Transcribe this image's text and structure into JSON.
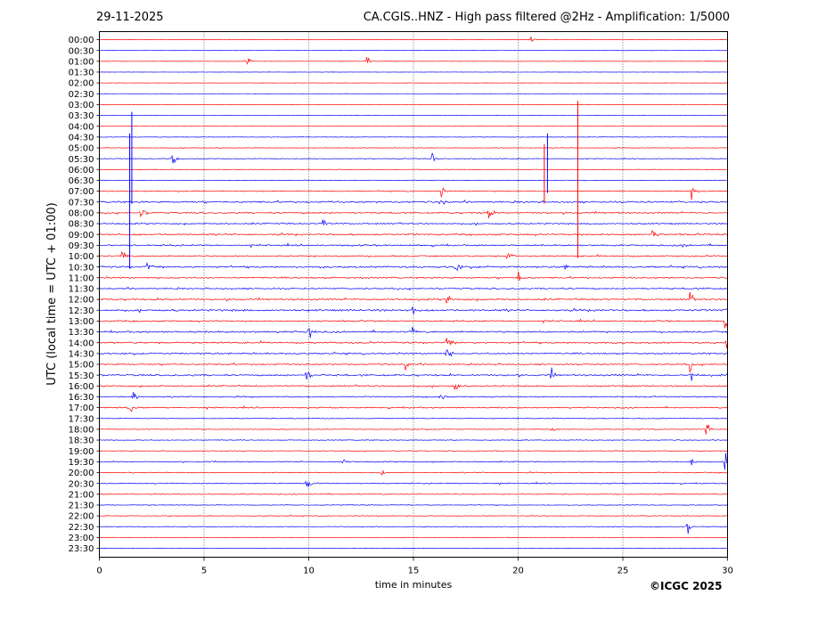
{
  "header": {
    "date": "29-11-2025",
    "title": "CA.CGIS..HNZ - High pass filtered @2Hz - Amplification: 1/5000"
  },
  "footer": {
    "copyright": "©ICGC 2025"
  },
  "colors": {
    "trace_red": "#ff0000",
    "trace_blue": "#0000ff",
    "frame": "#000000",
    "grid": "#000000"
  },
  "chart_data": {
    "type": "seismogram",
    "xlabel": "time in minutes",
    "ylabel": "UTC (local time = UTC + 01:00)",
    "xlim": [
      0,
      30
    ],
    "xticks": [
      0,
      5,
      10,
      15,
      20,
      25,
      30
    ],
    "grid": "vertical dotted lines at 5, 10, 15, 20, 25",
    "row_colors_alternate": [
      "red",
      "blue"
    ],
    "rows": [
      "00:00",
      "00:30",
      "01:00",
      "01:30",
      "02:00",
      "02:30",
      "03:00",
      "03:30",
      "04:00",
      "04:30",
      "05:00",
      "05:30",
      "06:00",
      "06:30",
      "07:00",
      "07:30",
      "08:00",
      "08:30",
      "09:00",
      "09:30",
      "10:00",
      "10:30",
      "11:00",
      "11:30",
      "12:00",
      "12:30",
      "13:00",
      "13:30",
      "14:00",
      "14:30",
      "15:00",
      "15:30",
      "16:00",
      "16:30",
      "17:00",
      "17:30",
      "18:00",
      "18:30",
      "19:00",
      "19:30",
      "20:00",
      "20:30",
      "21:00",
      "21:30",
      "22:00",
      "22:30",
      "23:00",
      "23:30"
    ],
    "noise_level": [
      0.08,
      0.05,
      0.08,
      0.05,
      0.05,
      0.05,
      0.03,
      0.03,
      0.05,
      0.1,
      0.12,
      0.12,
      0.1,
      0.12,
      0.18,
      0.35,
      0.3,
      0.3,
      0.35,
      0.3,
      0.3,
      0.35,
      0.3,
      0.3,
      0.35,
      0.4,
      0.3,
      0.35,
      0.35,
      0.3,
      0.3,
      0.35,
      0.3,
      0.25,
      0.25,
      0.15,
      0.15,
      0.15,
      0.15,
      0.2,
      0.2,
      0.2,
      0.15,
      0.15,
      0.15,
      0.12,
      0.08,
      0.05
    ],
    "events": [
      {
        "row": "00:00",
        "t": 20.6,
        "amp": 0.4
      },
      {
        "row": "01:00",
        "t": 7.0,
        "amp": 0.7
      },
      {
        "row": "01:00",
        "t": 12.8,
        "amp": 0.7
      },
      {
        "row": "05:30",
        "t": 3.5,
        "amp": 0.5
      },
      {
        "row": "05:30",
        "t": 15.9,
        "amp": 0.6
      },
      {
        "row": "07:00",
        "t": 16.3,
        "amp": 0.6
      },
      {
        "row": "07:00",
        "t": 28.3,
        "amp": 0.7
      },
      {
        "row": "07:30",
        "t": 16.3,
        "amp": 0.6
      },
      {
        "row": "08:00",
        "t": 2.0,
        "amp": 0.6
      },
      {
        "row": "08:00",
        "t": 18.6,
        "amp": 0.6
      },
      {
        "row": "08:30",
        "t": 10.7,
        "amp": 0.6
      },
      {
        "row": "09:00",
        "t": 26.4,
        "amp": 0.6
      },
      {
        "row": "09:30",
        "t": 27.9,
        "amp": 0.5
      },
      {
        "row": "10:00",
        "t": 1.1,
        "amp": 0.7
      },
      {
        "row": "10:00",
        "t": 19.5,
        "amp": 0.6
      },
      {
        "row": "10:30",
        "t": 2.3,
        "amp": 0.6
      },
      {
        "row": "10:30",
        "t": 17.0,
        "amp": 0.6
      },
      {
        "row": "10:30",
        "t": 22.1,
        "amp": 0.5
      },
      {
        "row": "11:00",
        "t": 20.0,
        "amp": 0.7
      },
      {
        "row": "12:00",
        "t": 16.6,
        "amp": 0.6
      },
      {
        "row": "12:00",
        "t": 28.2,
        "amp": 0.7
      },
      {
        "row": "12:30",
        "t": 15.0,
        "amp": 0.7
      },
      {
        "row": "12:30",
        "t": 29.9,
        "amp": 0.7
      },
      {
        "row": "13:00",
        "t": 29.9,
        "amp": 0.7
      },
      {
        "row": "13:30",
        "t": 10.0,
        "amp": 0.6
      },
      {
        "row": "13:30",
        "t": 14.9,
        "amp": 0.6
      },
      {
        "row": "14:00",
        "t": 16.6,
        "amp": 0.6
      },
      {
        "row": "14:00",
        "t": 29.9,
        "amp": 0.9
      },
      {
        "row": "14:30",
        "t": 16.6,
        "amp": 0.8
      },
      {
        "row": "15:00",
        "t": 14.6,
        "amp": 0.5
      },
      {
        "row": "15:00",
        "t": 28.2,
        "amp": 0.6
      },
      {
        "row": "15:30",
        "t": 9.9,
        "amp": 0.6
      },
      {
        "row": "15:30",
        "t": 21.6,
        "amp": 0.5
      },
      {
        "row": "15:30",
        "t": 28.3,
        "amp": 0.8
      },
      {
        "row": "16:00",
        "t": 17.0,
        "amp": 0.5
      },
      {
        "row": "16:30",
        "t": 1.6,
        "amp": 0.7
      },
      {
        "row": "16:30",
        "t": 16.3,
        "amp": 0.6
      },
      {
        "row": "17:00",
        "t": 1.4,
        "amp": 0.7
      },
      {
        "row": "18:00",
        "t": 21.6,
        "amp": 0.4
      },
      {
        "row": "18:00",
        "t": 29.0,
        "amp": 0.7
      },
      {
        "row": "19:30",
        "t": 11.6,
        "amp": 0.5
      },
      {
        "row": "19:30",
        "t": 28.3,
        "amp": 0.6
      },
      {
        "row": "19:30",
        "t": 29.9,
        "amp": 0.7
      },
      {
        "row": "20:00",
        "t": 13.4,
        "amp": 0.5
      },
      {
        "row": "20:30",
        "t": 9.9,
        "amp": 0.6
      },
      {
        "row": "22:30",
        "t": 28.1,
        "amp": 0.6
      }
    ],
    "spikes": [
      {
        "color": "blue",
        "t": 1.45,
        "from": "04:30",
        "to": "10:30"
      },
      {
        "color": "blue",
        "t": 1.55,
        "from": "03:30",
        "to": "07:30"
      },
      {
        "color": "red",
        "t": 21.25,
        "from": "05:00",
        "to": "07:30"
      },
      {
        "color": "blue",
        "t": 21.4,
        "from": "04:30",
        "to": "07:00"
      },
      {
        "color": "red",
        "t": 22.85,
        "from": "03:00",
        "to": "10:00"
      }
    ]
  }
}
